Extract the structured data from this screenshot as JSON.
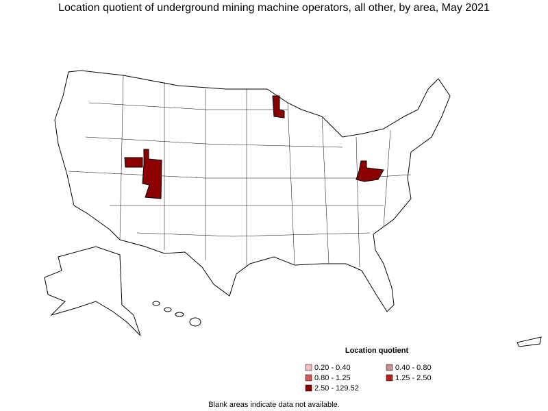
{
  "title": "Location quotient of underground mining machine operators, all other, by area, May 2021",
  "legend": {
    "title": "Location quotient",
    "items": [
      {
        "label": "0.20 - 0.40",
        "color": "#f4bcbc"
      },
      {
        "label": "0.40 - 0.80",
        "color": "#c49090"
      },
      {
        "label": "0.80 - 1.25",
        "color": "#d45a5a"
      },
      {
        "label": "1.25 - 2.50",
        "color": "#b22222"
      },
      {
        "label": "2.50 - 129.52",
        "color": "#8b0000"
      }
    ]
  },
  "note": "Blank areas indicate data not available."
}
